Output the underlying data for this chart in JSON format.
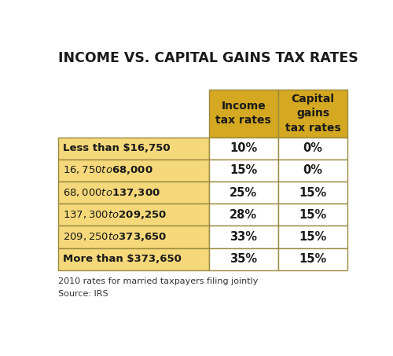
{
  "title": "INCOME VS. CAPITAL GAINS TAX RATES",
  "header_col1": "Income\ntax rates",
  "header_col2": "Capital\ngains\ntax rates",
  "rows": [
    [
      "Less than $16,750",
      "10%",
      "0%"
    ],
    [
      "$16,750 to $68,000",
      "15%",
      "0%"
    ],
    [
      "$68,000 to $137,300",
      "25%",
      "15%"
    ],
    [
      "$137,300 to $209,250",
      "28%",
      "15%"
    ],
    [
      "$209,250 to $373,650",
      "33%",
      "15%"
    ],
    [
      "More than $373,650",
      "35%",
      "15%"
    ]
  ],
  "footer_line1": "2010 rates for married taxpayers filing jointly",
  "footer_line2": "Source: IRS",
  "bg_color": "#ffffff",
  "header_bg_color": "#d4a820",
  "row_bg_color": "#f5d87a",
  "cell_bg_color": "#ffffff",
  "border_color": "#b0a060",
  "title_color": "#1a1a1a",
  "text_color": "#1a1a1a"
}
